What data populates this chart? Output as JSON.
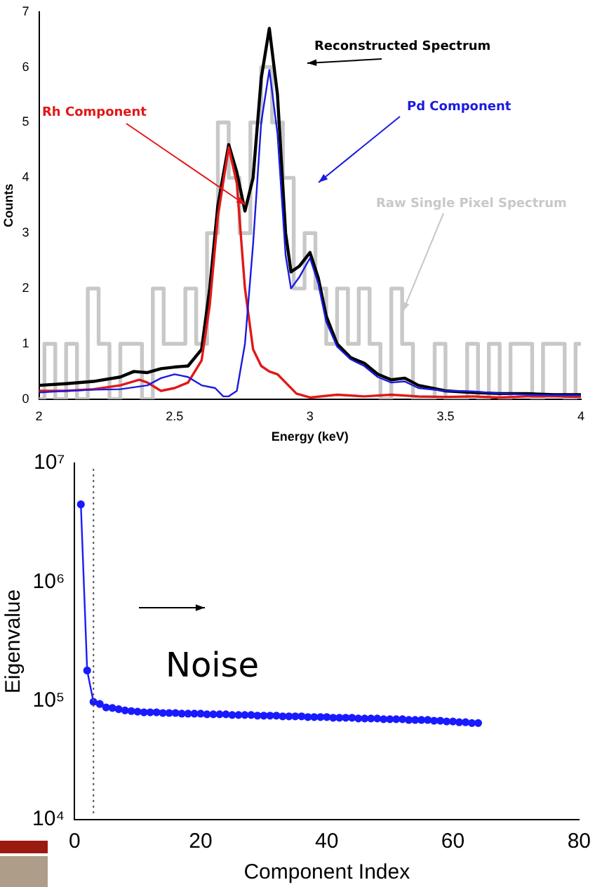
{
  "chart_data": [
    {
      "type": "line",
      "xlabel": "Energy (keV)",
      "ylabel": "Counts",
      "xlim": [
        2,
        4
      ],
      "xticks": [
        2,
        2.5,
        3,
        3.5,
        4
      ],
      "ylim": [
        0,
        7
      ],
      "yticks": [
        0,
        1,
        2,
        3,
        4,
        5,
        6,
        7
      ],
      "grid": false,
      "marker": "none",
      "line_style": "solid",
      "series": [
        {
          "name": "Raw Single Pixel Spectrum",
          "type": "step",
          "color": "#c8c8c8",
          "x": [
            2.0,
            2.04,
            2.08,
            2.12,
            2.16,
            2.2,
            2.24,
            2.28,
            2.32,
            2.36,
            2.4,
            2.44,
            2.48,
            2.52,
            2.56,
            2.6,
            2.64,
            2.68,
            2.72,
            2.76,
            2.8,
            2.84,
            2.88,
            2.92,
            2.96,
            3.0,
            3.04,
            3.08,
            3.12,
            3.16,
            3.2,
            3.24,
            3.28,
            3.32,
            3.36,
            3.4,
            3.44,
            3.48,
            3.52,
            3.56,
            3.6,
            3.64,
            3.68,
            3.72,
            3.76,
            3.8,
            3.84,
            3.88,
            3.92,
            3.96,
            4.0
          ],
          "values": [
            0,
            1,
            0,
            1,
            0,
            2,
            1,
            0,
            1,
            1,
            0,
            2,
            1,
            1,
            2,
            1,
            3,
            5,
            4,
            3,
            5,
            6,
            5,
            4,
            2,
            3,
            2,
            1,
            2,
            1,
            2,
            1,
            0,
            2,
            1,
            0,
            0,
            1,
            0,
            0,
            1,
            0,
            1,
            0,
            1,
            1,
            0,
            1,
            1,
            0,
            1
          ]
        },
        {
          "name": "Reconstructed Spectrum",
          "color": "#000000",
          "x": [
            2.0,
            2.1,
            2.2,
            2.3,
            2.35,
            2.4,
            2.45,
            2.5,
            2.55,
            2.6,
            2.63,
            2.66,
            2.7,
            2.73,
            2.76,
            2.79,
            2.82,
            2.85,
            2.88,
            2.91,
            2.93,
            2.96,
            3.0,
            3.03,
            3.06,
            3.1,
            3.15,
            3.2,
            3.25,
            3.3,
            3.35,
            3.4,
            3.5,
            3.6,
            3.7,
            3.8,
            3.9,
            4.0
          ],
          "values": [
            0.25,
            0.28,
            0.32,
            0.4,
            0.5,
            0.48,
            0.55,
            0.58,
            0.6,
            0.9,
            2.0,
            3.5,
            4.6,
            4.1,
            3.4,
            4.0,
            5.8,
            6.7,
            5.5,
            3.0,
            2.3,
            2.4,
            2.65,
            2.2,
            1.5,
            1.0,
            0.75,
            0.65,
            0.45,
            0.35,
            0.38,
            0.25,
            0.15,
            0.12,
            0.1,
            0.1,
            0.08,
            0.08
          ]
        },
        {
          "name": "Rh Component",
          "color": "#e01818",
          "x": [
            2.0,
            2.1,
            2.2,
            2.3,
            2.37,
            2.4,
            2.45,
            2.5,
            2.55,
            2.6,
            2.63,
            2.66,
            2.7,
            2.73,
            2.76,
            2.79,
            2.82,
            2.85,
            2.88,
            2.91,
            2.95,
            3.0,
            3.1,
            3.2,
            3.3,
            3.4,
            3.5,
            3.6,
            3.7,
            3.8,
            3.9,
            4.0
          ],
          "values": [
            0.15,
            0.15,
            0.18,
            0.25,
            0.35,
            0.3,
            0.15,
            0.2,
            0.3,
            0.7,
            1.7,
            3.3,
            4.55,
            3.9,
            2.0,
            0.9,
            0.6,
            0.5,
            0.45,
            0.3,
            0.1,
            0.03,
            0.08,
            0.05,
            0.08,
            0.05,
            0.04,
            0.05,
            0.03,
            0.05,
            0.05,
            0.04
          ]
        },
        {
          "name": "Pd Component",
          "color": "#1a1ae0",
          "x": [
            2.0,
            2.1,
            2.2,
            2.3,
            2.4,
            2.45,
            2.5,
            2.55,
            2.6,
            2.65,
            2.68,
            2.7,
            2.73,
            2.76,
            2.79,
            2.82,
            2.85,
            2.88,
            2.91,
            2.93,
            2.96,
            3.0,
            3.03,
            3.06,
            3.1,
            3.15,
            3.2,
            3.25,
            3.3,
            3.35,
            3.4,
            3.5,
            3.6,
            3.7,
            3.8,
            3.9,
            4.0
          ],
          "values": [
            0.12,
            0.15,
            0.17,
            0.18,
            0.25,
            0.38,
            0.45,
            0.4,
            0.25,
            0.2,
            0.05,
            0.05,
            0.15,
            1.0,
            2.8,
            5.0,
            5.95,
            4.8,
            2.6,
            2.0,
            2.2,
            2.55,
            2.1,
            1.4,
            0.95,
            0.72,
            0.6,
            0.4,
            0.3,
            0.32,
            0.2,
            0.15,
            0.14,
            0.1,
            0.08,
            0.07,
            0.07
          ]
        }
      ]
    },
    {
      "type": "line",
      "xlabel": "Component Index",
      "ylabel": "Eigenvalue",
      "log": "y",
      "xlim": [
        0,
        80
      ],
      "xticks": [
        0,
        20,
        40,
        60,
        80
      ],
      "ylim": [
        10000,
        10000000
      ],
      "yticks": [
        {
          "value": 10000,
          "label": "10⁴"
        },
        {
          "value": 100000,
          "label": "10⁵"
        },
        {
          "value": 1000000,
          "label": "10⁶"
        },
        {
          "value": 10000000,
          "label": "10⁷"
        }
      ],
      "grid": false,
      "marker": "circle",
      "line_style": "solid",
      "annotations": [
        "Noise"
      ],
      "ref_lines": [
        {
          "axis": "x",
          "value": 3,
          "color": "#555555",
          "line_style": "dotted"
        }
      ],
      "series": [
        {
          "color": "#1a1aff",
          "x": [
            1,
            2,
            3,
            4,
            5,
            6,
            7,
            8,
            9,
            10,
            11,
            12,
            13,
            14,
            15,
            16,
            17,
            18,
            19,
            20,
            21,
            22,
            23,
            24,
            25,
            26,
            27,
            28,
            29,
            30,
            31,
            32,
            33,
            34,
            35,
            36,
            37,
            38,
            39,
            40,
            41,
            42,
            43,
            44,
            45,
            46,
            47,
            48,
            49,
            50,
            51,
            52,
            53,
            54,
            55,
            56,
            57,
            58,
            59,
            60,
            61,
            62,
            63,
            64
          ],
          "values": [
            4500000,
            180000,
            98000,
            94000,
            88000,
            87000,
            85000,
            83000,
            82000,
            81000,
            80000,
            80000,
            80000,
            79000,
            79000,
            79000,
            78000,
            78000,
            78000,
            78000,
            77000,
            77000,
            77000,
            77000,
            76000,
            76000,
            76000,
            76000,
            75000,
            75000,
            75000,
            75000,
            74000,
            74000,
            74000,
            74000,
            73000,
            73000,
            73000,
            73000,
            72000,
            72000,
            72000,
            72000,
            71000,
            71000,
            71000,
            71000,
            70000,
            70000,
            70000,
            70000,
            69000,
            69000,
            69000,
            69000,
            68000,
            68000,
            67000,
            67000,
            66000,
            66000,
            65000,
            65000
          ]
        }
      ]
    }
  ]
}
